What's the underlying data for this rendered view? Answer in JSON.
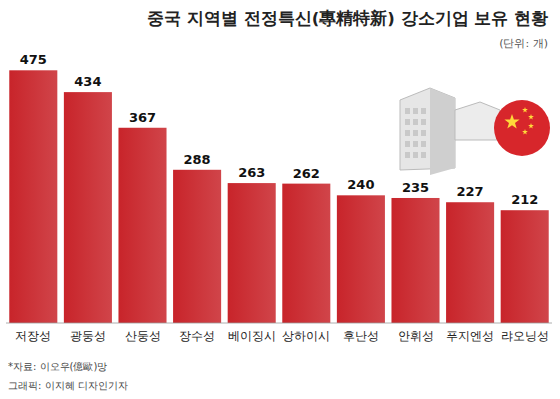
{
  "chart_data": {
    "type": "bar",
    "title": "중국 지역별 전정특신(專精特新) 강소기업 보유 현황",
    "subtitle": "(단위: 개)",
    "categories": [
      "저장성",
      "광둥성",
      "산둥성",
      "장수성",
      "베이징시",
      "상하이시",
      "후난성",
      "안휘성",
      "푸지엔성",
      "랴오닝성"
    ],
    "values": [
      475,
      434,
      367,
      288,
      263,
      262,
      240,
      235,
      227,
      212
    ],
    "color": "#c8242a",
    "ylim": [
      0,
      500
    ],
    "data_labels": true,
    "tick_labels": "x",
    "grid": false,
    "annotations": [
      "*자료: 이오우(億歐)망",
      "그래픽: 이지혜 디자인기자"
    ]
  }
}
